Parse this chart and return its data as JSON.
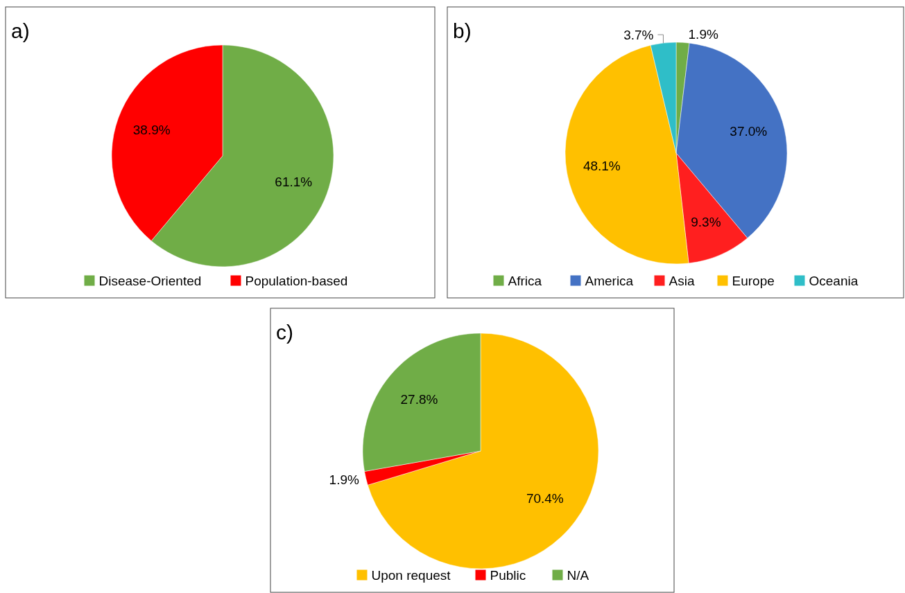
{
  "chart_data": [
    {
      "type": "pie",
      "title": "a)",
      "categories": [
        "Disease-Oriented",
        "Population-based"
      ],
      "values": [
        61.1,
        38.9
      ],
      "colors": [
        "#70ad47",
        "#ff0000"
      ],
      "value_labels": [
        "61.1%",
        "38.9%"
      ],
      "legend": "bottom"
    },
    {
      "type": "pie",
      "title": "b)",
      "categories": [
        "Africa",
        "America",
        "Asia",
        "Europe",
        "Oceania"
      ],
      "values": [
        1.9,
        37.0,
        9.3,
        48.1,
        3.7
      ],
      "colors": [
        "#70ad47",
        "#4472c4",
        "#ff1f1f",
        "#ffc000",
        "#2fbec8"
      ],
      "value_labels": [
        "1.9%",
        "37.0%",
        "9.3%",
        "48.1%",
        "3.7%"
      ],
      "legend": "bottom"
    },
    {
      "type": "pie",
      "title": "c)",
      "categories": [
        "Upon request",
        "Public",
        "N/A"
      ],
      "values": [
        70.4,
        1.9,
        27.8
      ],
      "colors": [
        "#ffc000",
        "#ff0000",
        "#70ad47"
      ],
      "value_labels": [
        "70.4%",
        "1.9%",
        "27.8%"
      ],
      "legend": "bottom"
    }
  ]
}
